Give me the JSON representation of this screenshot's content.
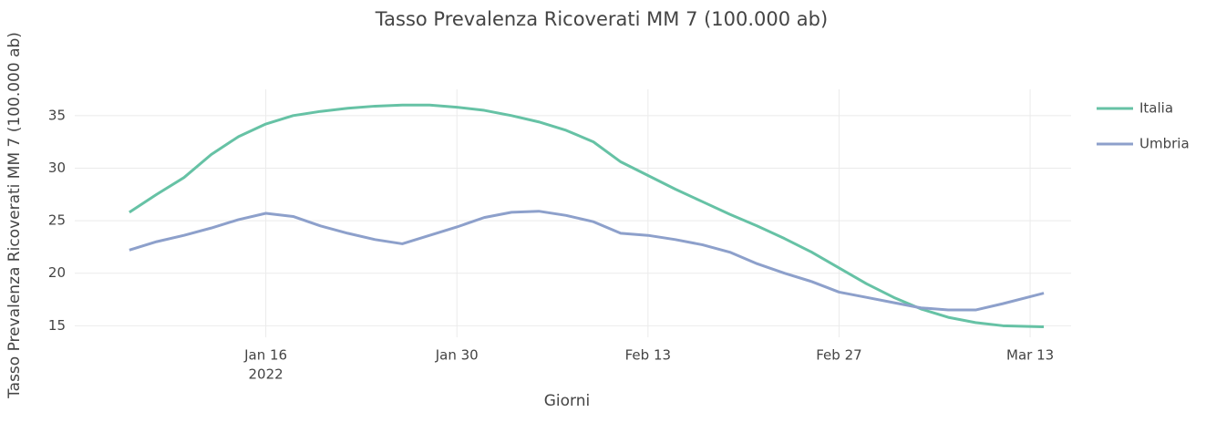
{
  "chart_data": {
    "type": "line",
    "title": "Tasso Prevalenza Ricoverati MM 7 (100.000 ab)",
    "x_label": "Giorni",
    "y_label": "Tasso Prevalenza Ricoverati MM 7 (100.000 ab)",
    "x": [
      "2022-01-06",
      "2022-01-08",
      "2022-01-10",
      "2022-01-12",
      "2022-01-14",
      "2022-01-16",
      "2022-01-18",
      "2022-01-20",
      "2022-01-22",
      "2022-01-24",
      "2022-01-26",
      "2022-01-28",
      "2022-01-30",
      "2022-02-01",
      "2022-02-03",
      "2022-02-05",
      "2022-02-07",
      "2022-02-09",
      "2022-02-11",
      "2022-02-13",
      "2022-02-15",
      "2022-02-17",
      "2022-02-19",
      "2022-02-21",
      "2022-02-23",
      "2022-02-25",
      "2022-02-27",
      "2022-03-01",
      "2022-03-03",
      "2022-03-05",
      "2022-03-07",
      "2022-03-09",
      "2022-03-11",
      "2022-03-14"
    ],
    "series": [
      {
        "name": "Italia",
        "color": "#66c2a5",
        "values": [
          25.8,
          27.5,
          29.1,
          31.3,
          33.0,
          34.2,
          35.0,
          35.4,
          35.7,
          35.9,
          36.0,
          36.0,
          35.8,
          35.5,
          35.0,
          34.4,
          33.6,
          32.5,
          30.6,
          29.3,
          28.0,
          26.8,
          25.6,
          24.5,
          23.3,
          22.0,
          20.5,
          19.0,
          17.7,
          16.6,
          15.8,
          15.3,
          15.0,
          14.9
        ]
      },
      {
        "name": "Umbria",
        "color": "#8da0cb",
        "values": [
          22.2,
          23.0,
          23.6,
          24.3,
          25.1,
          25.7,
          25.4,
          24.5,
          23.8,
          23.2,
          22.8,
          23.6,
          24.4,
          25.3,
          25.8,
          25.9,
          25.5,
          24.9,
          23.8,
          23.6,
          23.2,
          22.7,
          22.0,
          20.9,
          20.0,
          19.2,
          18.2,
          17.7,
          17.2,
          16.7,
          16.5,
          16.5,
          17.1,
          18.1
        ]
      }
    ],
    "xlim": [
      "2022-01-02",
      "2022-03-16"
    ],
    "xticks": [
      {
        "value": "2022-01-16",
        "label": "Jan 16"
      },
      {
        "value": "2022-01-30",
        "label": "Jan 30"
      },
      {
        "value": "2022-02-13",
        "label": "Feb 13"
      },
      {
        "value": "2022-02-27",
        "label": "Feb 27"
      },
      {
        "value": "2022-03-13",
        "label": "Mar 13"
      }
    ],
    "x_year_label": "2022",
    "ylim": [
      13.9,
      37.5
    ],
    "yticks": [
      15,
      20,
      25,
      30,
      35
    ],
    "grid": true,
    "legend": "right"
  }
}
